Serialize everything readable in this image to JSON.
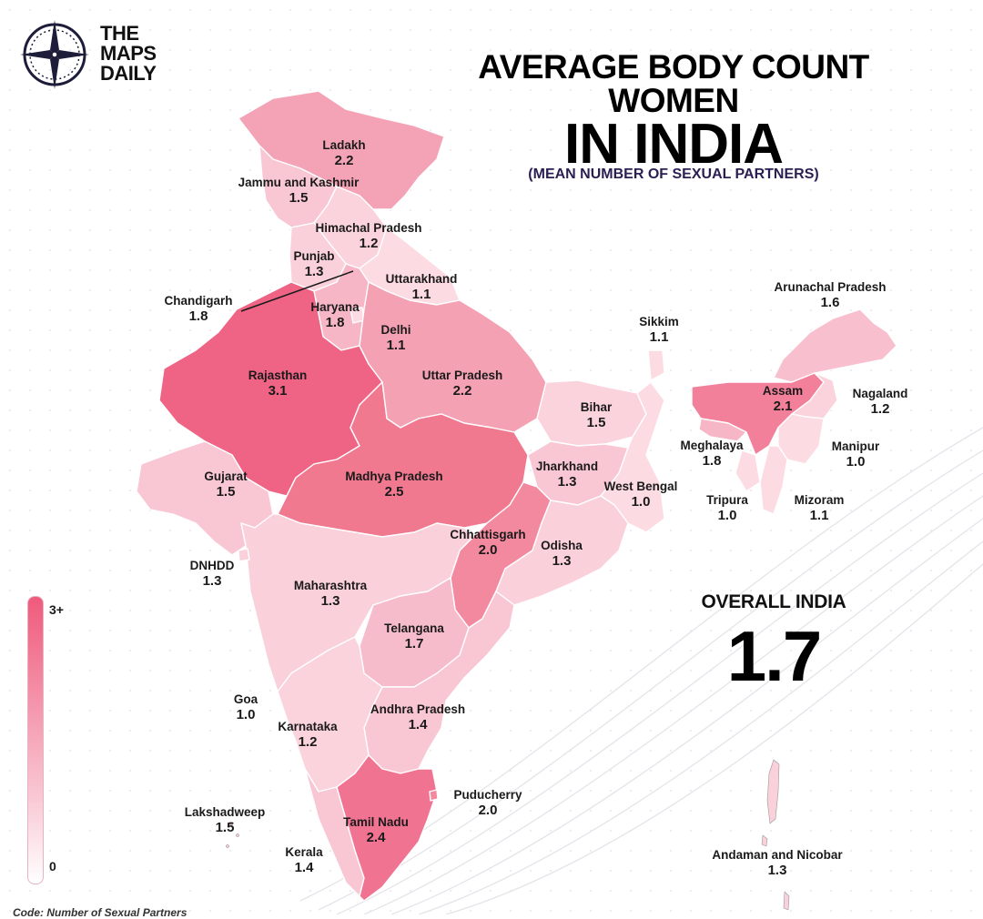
{
  "brand": {
    "line1": "THE",
    "line2": "MAPS",
    "line3": "DAILY",
    "logo_icon": "compass-icon"
  },
  "title": {
    "line1": "AVERAGE BODY COUNT",
    "line2": "WOMEN",
    "line3": "IN INDIA"
  },
  "subtitle": "(MEAN NUMBER OF SEXUAL PARTNERS)",
  "overall": {
    "label": "OVERALL INDIA",
    "value": "1.7"
  },
  "legend": {
    "max": "3+",
    "min": "0",
    "color_high": "#ef5a7c",
    "color_low": "#ffffff"
  },
  "source": "Code: Number of Sexual Partners",
  "regions": [
    {
      "name": "Ladakh",
      "value": "2.2"
    },
    {
      "name": "Jammu and Kashmir",
      "value": "1.5"
    },
    {
      "name": "Himachal Pradesh",
      "value": "1.2"
    },
    {
      "name": "Punjab",
      "value": "1.3"
    },
    {
      "name": "Uttarakhand",
      "value": "1.1"
    },
    {
      "name": "Chandigarh",
      "value": "1.8"
    },
    {
      "name": "Haryana",
      "value": "1.8"
    },
    {
      "name": "Delhi",
      "value": "1.1"
    },
    {
      "name": "Rajasthan",
      "value": "3.1"
    },
    {
      "name": "Uttar Pradesh",
      "value": "2.2"
    },
    {
      "name": "Sikkim",
      "value": "1.1"
    },
    {
      "name": "Arunachal Pradesh",
      "value": "1.6"
    },
    {
      "name": "Assam",
      "value": "2.1"
    },
    {
      "name": "Nagaland",
      "value": "1.2"
    },
    {
      "name": "Bihar",
      "value": "1.5"
    },
    {
      "name": "Meghalaya",
      "value": "1.8"
    },
    {
      "name": "Manipur",
      "value": "1.0"
    },
    {
      "name": "Gujarat",
      "value": "1.5"
    },
    {
      "name": "Madhya Pradesh",
      "value": "2.5"
    },
    {
      "name": "Jharkhand",
      "value": "1.3"
    },
    {
      "name": "West Bengal",
      "value": "1.0"
    },
    {
      "name": "Tripura",
      "value": "1.0"
    },
    {
      "name": "Mizoram",
      "value": "1.1"
    },
    {
      "name": "Chhattisgarh",
      "value": "2.0"
    },
    {
      "name": "Odisha",
      "value": "1.3"
    },
    {
      "name": "DNHDD",
      "value": "1.3"
    },
    {
      "name": "Maharashtra",
      "value": "1.3"
    },
    {
      "name": "Telangana",
      "value": "1.7"
    },
    {
      "name": "Goa",
      "value": "1.0"
    },
    {
      "name": "Andhra Pradesh",
      "value": "1.4"
    },
    {
      "name": "Karnataka",
      "value": "1.2"
    },
    {
      "name": "Puducherry",
      "value": "2.0"
    },
    {
      "name": "Lakshadweep",
      "value": "1.5"
    },
    {
      "name": "Tamil Nadu",
      "value": "2.4"
    },
    {
      "name": "Kerala",
      "value": "1.4"
    },
    {
      "name": "Andaman and Nicobar",
      "value": "1.3"
    }
  ]
}
